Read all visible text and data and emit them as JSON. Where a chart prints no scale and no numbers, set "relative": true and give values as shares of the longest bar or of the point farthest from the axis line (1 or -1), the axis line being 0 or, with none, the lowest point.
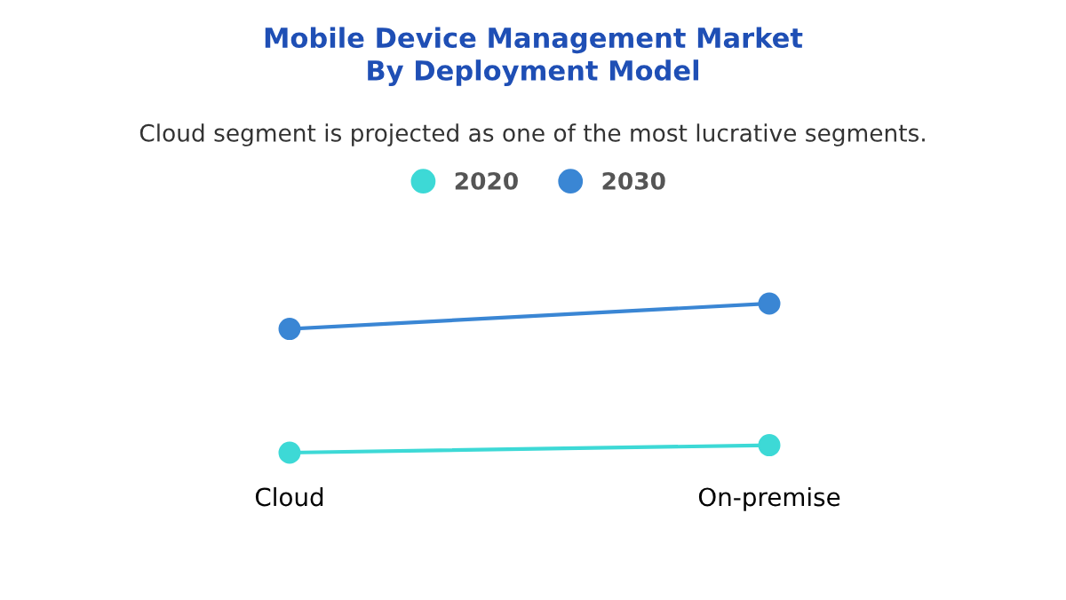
{
  "chart_data": {
    "type": "line",
    "title": "Mobile Device Management Market\nBy Deployment Model",
    "subtitle": "Cloud segment is projected as one of the most lucrative segments.",
    "relative": true,
    "categories": [
      "Cloud",
      "On-premise"
    ],
    "series": [
      {
        "name": "2020",
        "color": "#3dd9d6",
        "values": [
          0,
          0.05
        ]
      },
      {
        "name": "2030",
        "color": "#3a86d4",
        "values": [
          0.83,
          1
        ]
      }
    ],
    "marker": "circle",
    "line_style": "solid",
    "legend": "top",
    "grid": false
  }
}
